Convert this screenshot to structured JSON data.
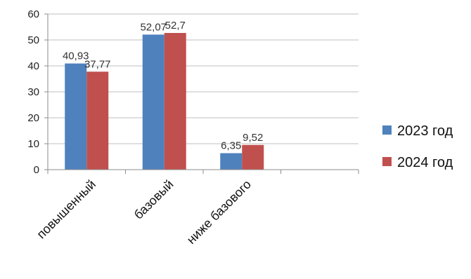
{
  "chart_data": {
    "type": "bar",
    "categories": [
      "повышенный",
      "базовый",
      "ниже базового",
      ""
    ],
    "series": [
      {
        "name": "2023 год",
        "values": [
          40.93,
          52.07,
          6.35,
          null
        ],
        "labels": [
          "40,93",
          "52,07",
          "6,35",
          ""
        ],
        "color": "#4f81bd"
      },
      {
        "name": "2024 год",
        "values": [
          37.77,
          52.7,
          9.52,
          null
        ],
        "labels": [
          "37,77",
          "52,7",
          "9,52",
          ""
        ],
        "color": "#c0504d"
      }
    ],
    "ylim": [
      0,
      60
    ],
    "yticks": [
      0,
      10,
      20,
      30,
      40,
      50,
      60
    ],
    "grid": true,
    "legend": "right",
    "title": "",
    "xlabel": "",
    "ylabel": ""
  }
}
